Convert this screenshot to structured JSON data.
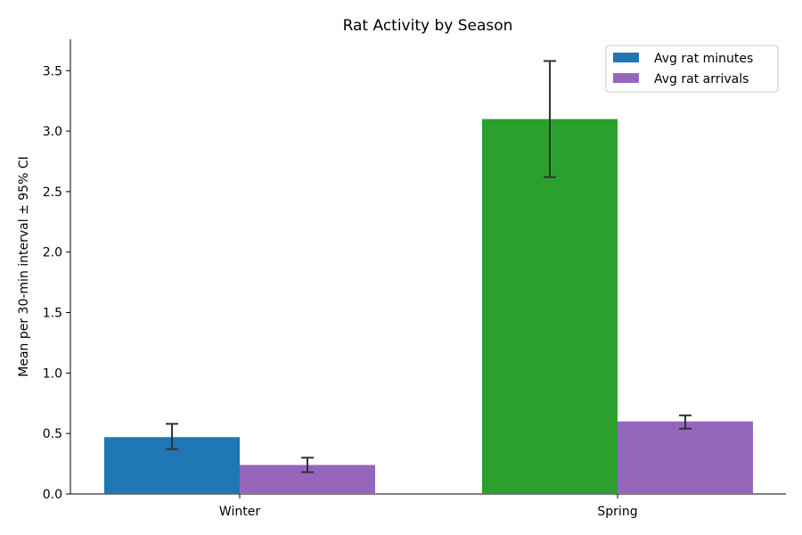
{
  "chart_data": {
    "type": "bar",
    "title": "Rat Activity by Season",
    "xlabel": "",
    "ylabel": "Mean per 30-min interval ± 95% CI",
    "categories": [
      "Winter",
      "Spring"
    ],
    "ylim": [
      0,
      3.76
    ],
    "yticks": [
      0.0,
      0.5,
      1.0,
      1.5,
      2.0,
      2.5,
      3.0,
      3.5
    ],
    "ytick_labels": [
      "0.0",
      "0.5",
      "1.0",
      "1.5",
      "2.0",
      "2.5",
      "3.0",
      "3.5"
    ],
    "grid": false,
    "legend_position": "top-right",
    "series": [
      {
        "name": "Avg rat minutes",
        "legend_color": "#1f77b4",
        "bar_colors": [
          "#1f77b4",
          "#2ca02c"
        ],
        "values": [
          0.47,
          3.1
        ],
        "ci_low": [
          0.37,
          2.62
        ],
        "ci_high": [
          0.58,
          3.58
        ]
      },
      {
        "name": "Avg rat arrivals",
        "legend_color": "#9467bd",
        "bar_colors": [
          "#9467bd",
          "#9467bd"
        ],
        "values": [
          0.24,
          0.6
        ],
        "ci_low": [
          0.18,
          0.54
        ],
        "ci_high": [
          0.3,
          0.65
        ]
      }
    ]
  }
}
